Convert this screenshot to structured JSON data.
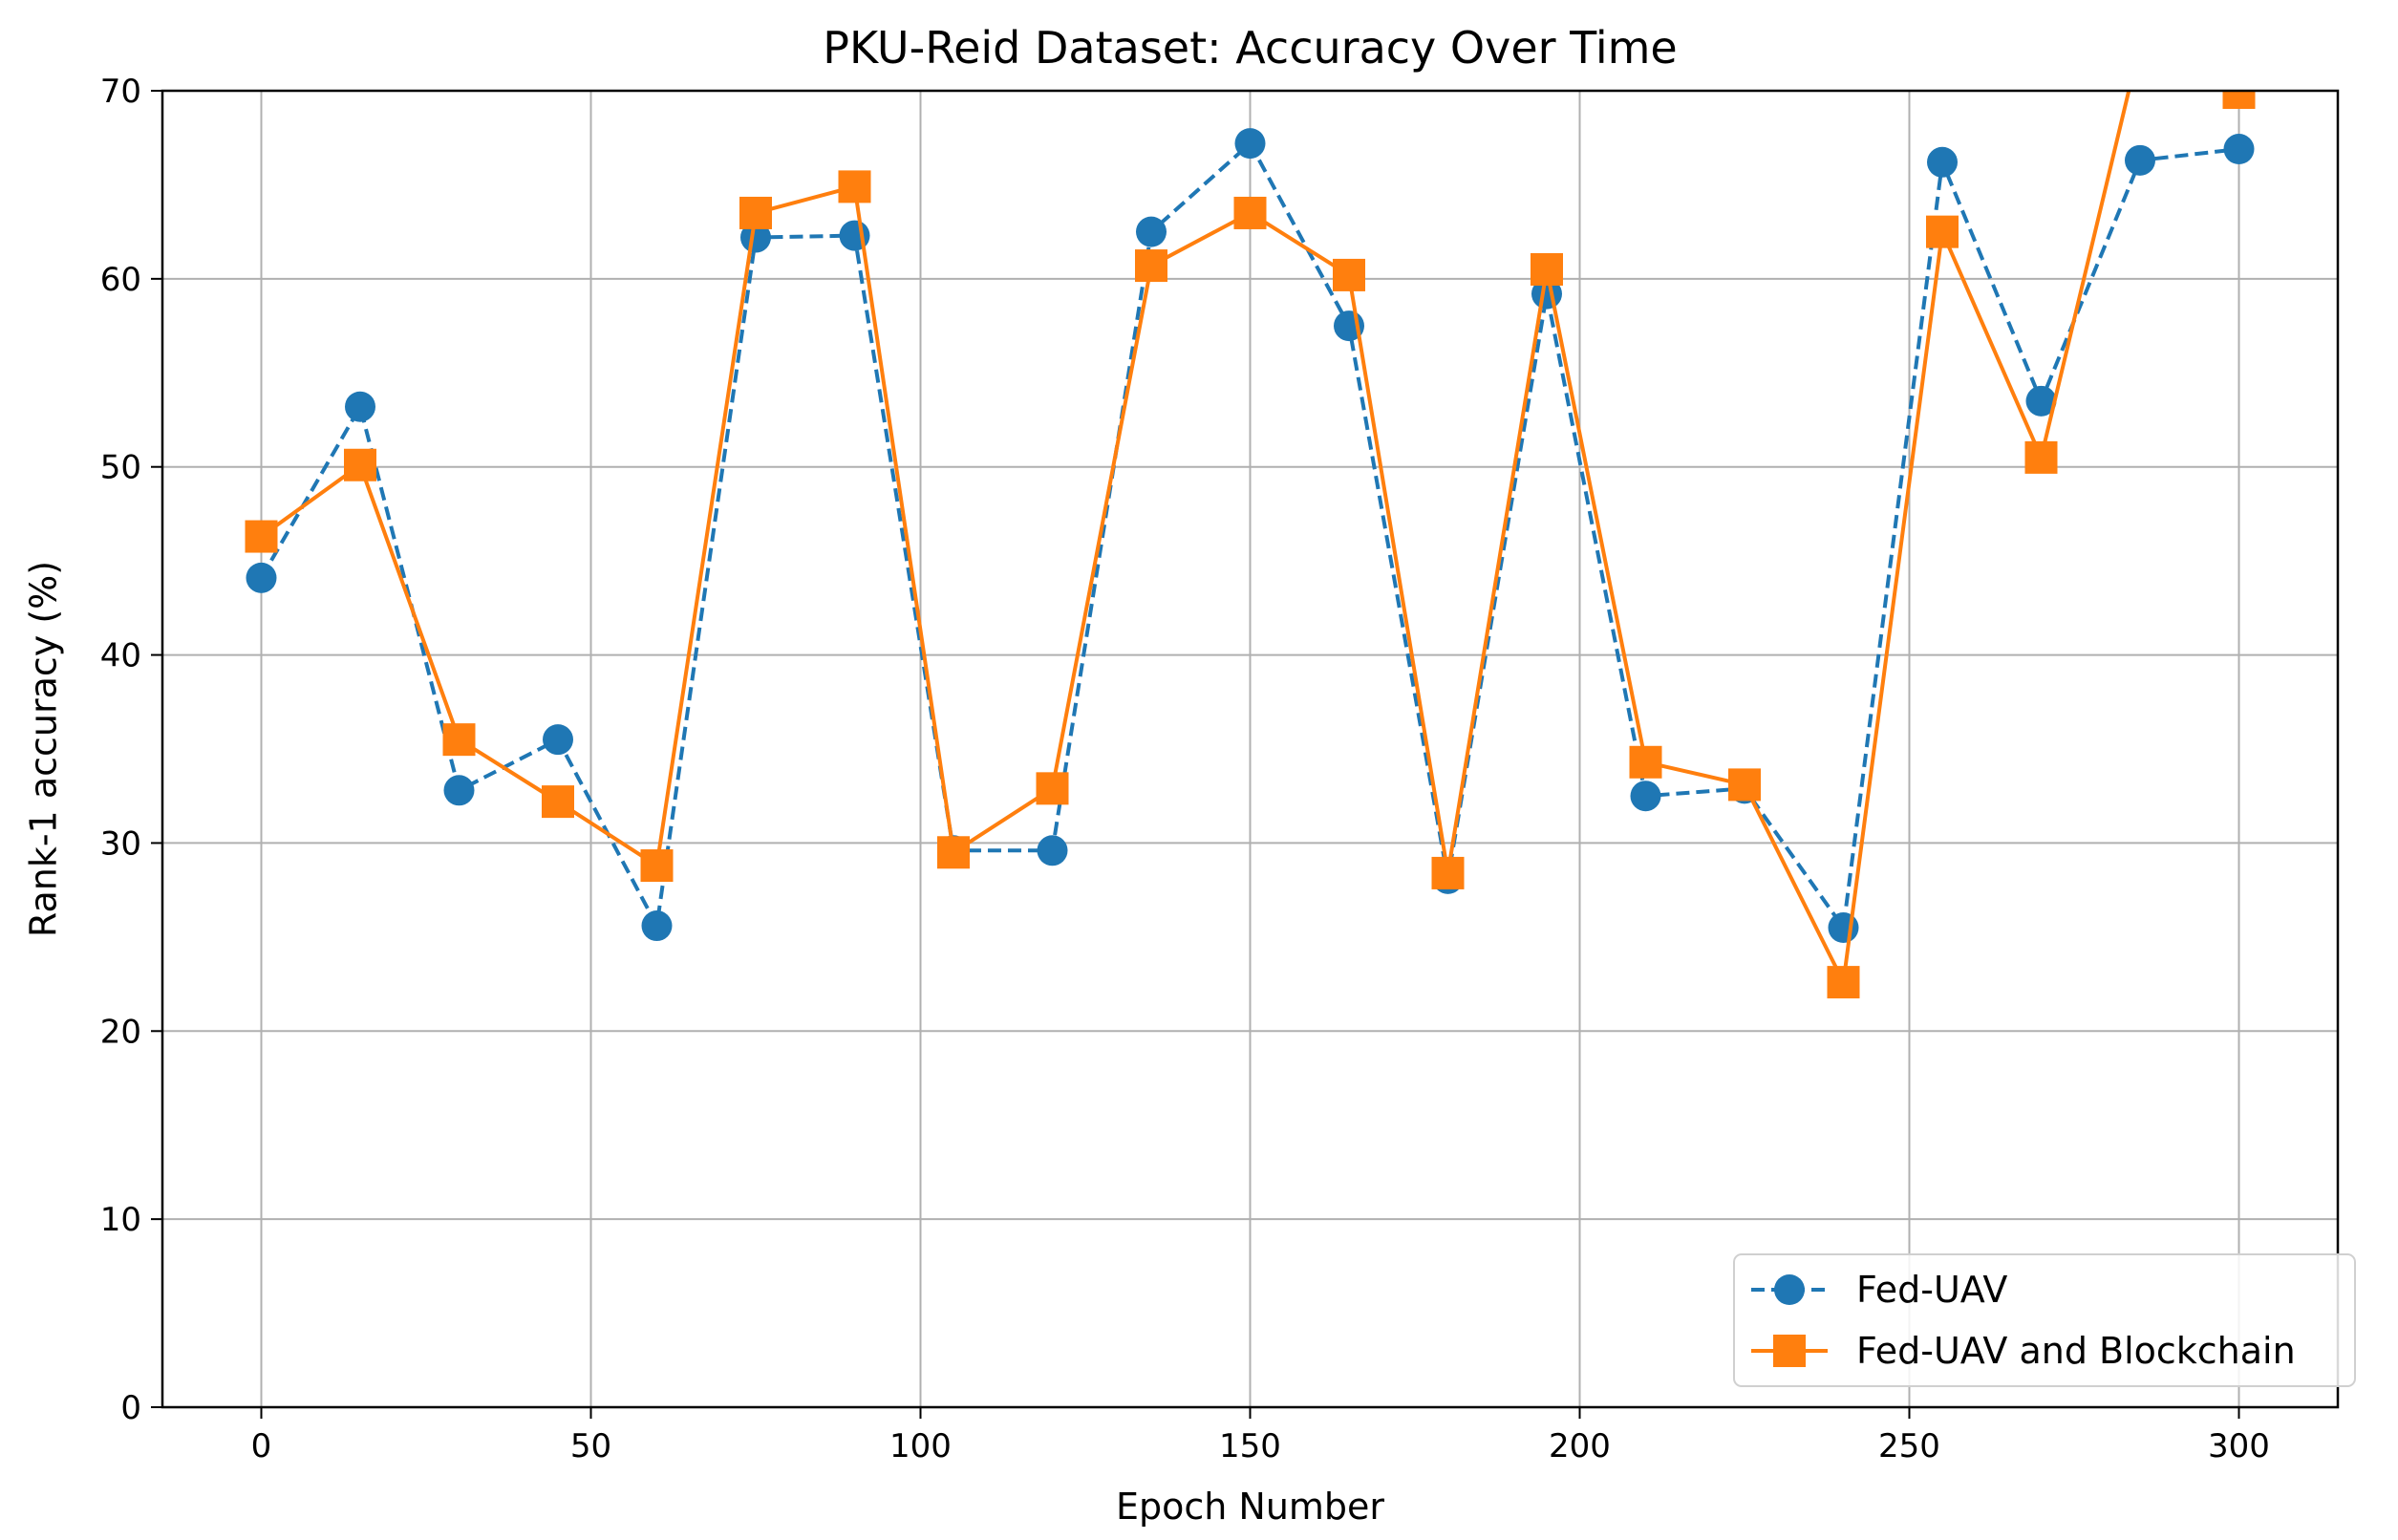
{
  "chart_data": {
    "type": "line",
    "title": "PKU-Reid Dataset: Accuracy Over Time",
    "xlabel": "Epoch Number",
    "ylabel": "Rank-1 accuracy (%)",
    "xlim": [
      -15,
      315
    ],
    "ylim": [
      0,
      70
    ],
    "xticks": [
      0,
      50,
      100,
      150,
      200,
      250,
      300
    ],
    "yticks": [
      0,
      10,
      20,
      30,
      40,
      50,
      60,
      70
    ],
    "grid": true,
    "legend_position": "lower right",
    "x": [
      0,
      15,
      30,
      45,
      60,
      75,
      90,
      105,
      120,
      135,
      150,
      165,
      180,
      195,
      210,
      225,
      240,
      255,
      270,
      285,
      300
    ],
    "series": [
      {
        "name": "Fed-UAV",
        "color": "#1f77b4",
        "line_style": "dashed",
        "marker": "circle",
        "values": [
          44.1,
          53.2,
          32.8,
          35.5,
          25.6,
          62.2,
          62.3,
          29.6,
          29.6,
          62.5,
          67.2,
          57.5,
          28.1,
          59.2,
          32.5,
          32.9,
          25.5,
          66.2,
          53.5,
          66.3,
          66.9
        ]
      },
      {
        "name": "Fed-UAV and Blockchain",
        "color": "#ff7f0e",
        "line_style": "solid",
        "marker": "square",
        "values": [
          46.3,
          50.1,
          35.5,
          32.2,
          28.8,
          63.5,
          64.9,
          29.5,
          32.9,
          60.7,
          63.5,
          60.2,
          28.4,
          60.5,
          34.3,
          33.1,
          22.6,
          62.5,
          50.5,
          72.5,
          69.9
        ]
      }
    ]
  }
}
